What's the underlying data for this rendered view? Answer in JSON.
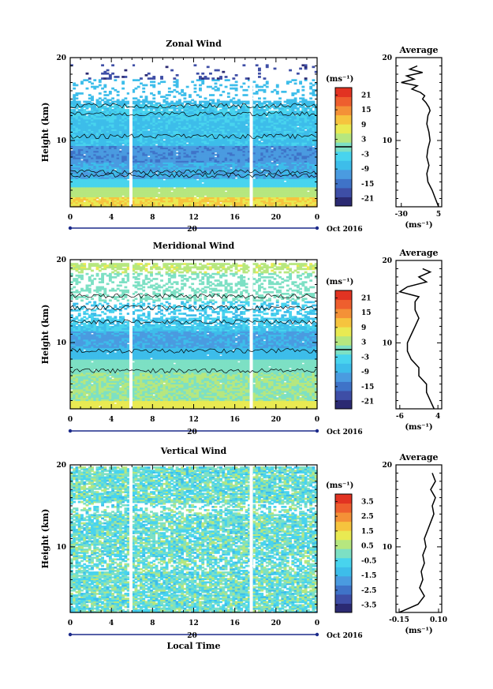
{
  "chart_data": [
    {
      "type": "heatmap",
      "title": "Zonal Wind",
      "ylabel": "Height (km)",
      "xlabel": "",
      "y_ticks": [
        "20",
        "10"
      ],
      "y_range": [
        2,
        20
      ],
      "x_ticks": [
        "0",
        "4",
        "8",
        "12",
        "16",
        "20",
        "0"
      ],
      "x_range": [
        0,
        24
      ],
      "date_day": "20",
      "date_label": "Oct 2016",
      "colorbar_unit": "(ms⁻¹)",
      "colorbar_ticks": [
        "21",
        "15",
        "9",
        "3",
        "-3",
        "-9",
        "-15",
        "-21"
      ],
      "colorbar_range": [
        -24,
        24
      ],
      "profile": {
        "title": "Average",
        "x_ticks": [
          "-30",
          "5"
        ],
        "x_range": [
          -35,
          8
        ],
        "y_ticks": [
          "20",
          "10"
        ],
        "unit": "(ms⁻¹)",
        "heights": [
          2.0,
          3.0,
          4.0,
          5.0,
          6.0,
          7.0,
          8.0,
          9.0,
          10.0,
          11.0,
          12.0,
          13.0,
          13.6,
          14.0,
          14.6,
          15.0,
          15.4,
          15.8,
          16.2,
          16.6,
          17.0,
          17.4,
          17.8,
          18.2,
          18.6,
          19.0
        ],
        "values": [
          5,
          2,
          -1,
          -5,
          -6,
          -4,
          -6,
          -5,
          -3,
          -4,
          -6,
          -5,
          -3,
          -4,
          -7,
          -10,
          -8,
          -12,
          -20,
          -15,
          -30,
          -18,
          -25,
          -10,
          -22,
          -15
        ]
      }
    },
    {
      "type": "heatmap",
      "title": "Meridional Wind",
      "ylabel": "Height (km)",
      "xlabel": "",
      "y_ticks": [
        "20",
        "10"
      ],
      "y_range": [
        2,
        20
      ],
      "x_ticks": [
        "0",
        "4",
        "8",
        "12",
        "16",
        "20",
        "0"
      ],
      "x_range": [
        0,
        24
      ],
      "date_day": "20",
      "date_label": "Oct 2016",
      "colorbar_unit": "(ms⁻¹)",
      "colorbar_ticks": [
        "21",
        "15",
        "9",
        "3",
        "-3",
        "-9",
        "-15",
        "-21"
      ],
      "colorbar_range": [
        -24,
        24
      ],
      "profile": {
        "title": "Average",
        "x_ticks": [
          "-6",
          "4"
        ],
        "x_range": [
          -7,
          5
        ],
        "y_ticks": [
          "20",
          "10"
        ],
        "unit": "(ms⁻¹)",
        "heights": [
          2.0,
          3.0,
          4.0,
          5.0,
          6.0,
          7.0,
          8.0,
          9.0,
          10.0,
          11.0,
          12.0,
          13.0,
          14.0,
          15.0,
          15.6,
          16.2,
          16.8,
          17.4,
          18.0,
          18.6,
          19.0
        ],
        "values": [
          3,
          2,
          1,
          1,
          -1,
          -1,
          -3,
          -4,
          -4,
          -3,
          -2,
          -1,
          -2,
          -2,
          -1,
          -6,
          -4,
          1,
          -1,
          2,
          0
        ]
      }
    },
    {
      "type": "heatmap",
      "title": "Vertical Wind",
      "ylabel": "Height (km)",
      "xlabel": "Local Time",
      "y_ticks": [
        "20",
        "10"
      ],
      "y_range": [
        2,
        20
      ],
      "x_ticks": [
        "0",
        "4",
        "8",
        "12",
        "16",
        "20",
        "0"
      ],
      "x_range": [
        0,
        24
      ],
      "date_day": "20",
      "date_label": "Oct 2016",
      "colorbar_unit": "(ms⁻¹)",
      "colorbar_ticks": [
        "3.5",
        "2.5",
        "1.5",
        "0.5",
        "-0.5",
        "-1.5",
        "-2.5",
        "-3.5"
      ],
      "colorbar_range": [
        -4,
        4
      ],
      "profile": {
        "title": "Average",
        "x_ticks": [
          "-0.15",
          "0.10"
        ],
        "x_range": [
          -0.17,
          0.12
        ],
        "y_ticks": [
          "20",
          "10"
        ],
        "unit": "(ms⁻¹)",
        "heights": [
          2.0,
          3.0,
          4.0,
          5.0,
          6.0,
          7.0,
          8.0,
          9.0,
          10.0,
          11.0,
          12.0,
          13.0,
          14.0,
          15.0,
          16.0,
          17.0,
          18.0,
          19.0
        ],
        "values": [
          -0.15,
          -0.03,
          0.01,
          -0.02,
          0.0,
          -0.01,
          0.01,
          0.0,
          0.02,
          0.01,
          0.03,
          0.05,
          0.07,
          0.06,
          0.08,
          0.05,
          0.08,
          0.06
        ]
      }
    }
  ],
  "colors": {
    "palette": [
      "#2b2a72",
      "#3e4ea6",
      "#3f73c8",
      "#4a9be0",
      "#3dbdea",
      "#48d4ee",
      "#7de0c4",
      "#b6e77f",
      "#e9ea52",
      "#f6c43e",
      "#f49137",
      "#ee5f2e",
      "#e23322"
    ],
    "gap": "#ffffff",
    "axis": "#000000"
  }
}
